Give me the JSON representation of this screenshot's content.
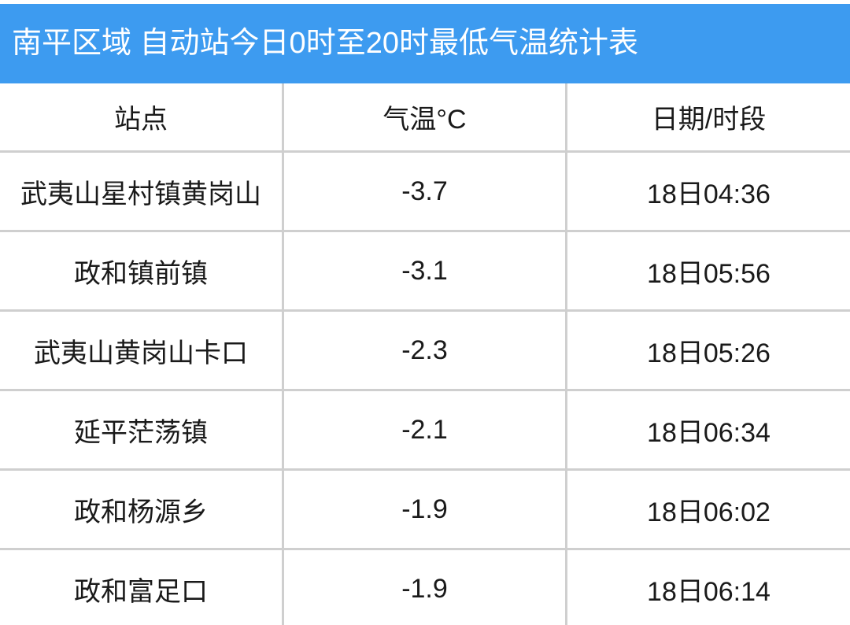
{
  "header": {
    "title": "南平区域 自动站今日0时至20时最低气温统计表"
  },
  "table": {
    "columns": [
      "站点",
      "气温°C",
      "日期/时段"
    ],
    "rows": [
      [
        "武夷山星村镇黄岗山",
        "-3.7",
        "18日04:36"
      ],
      [
        "政和镇前镇",
        "-3.1",
        "18日05:56"
      ],
      [
        "武夷山黄岗山卡口",
        "-2.3",
        "18日05:26"
      ],
      [
        "延平茫荡镇",
        "-2.1",
        "18日06:34"
      ],
      [
        "政和杨源乡",
        "-1.9",
        "18日06:02"
      ],
      [
        "政和富足口",
        "-1.9",
        "18日06:14"
      ]
    ]
  }
}
